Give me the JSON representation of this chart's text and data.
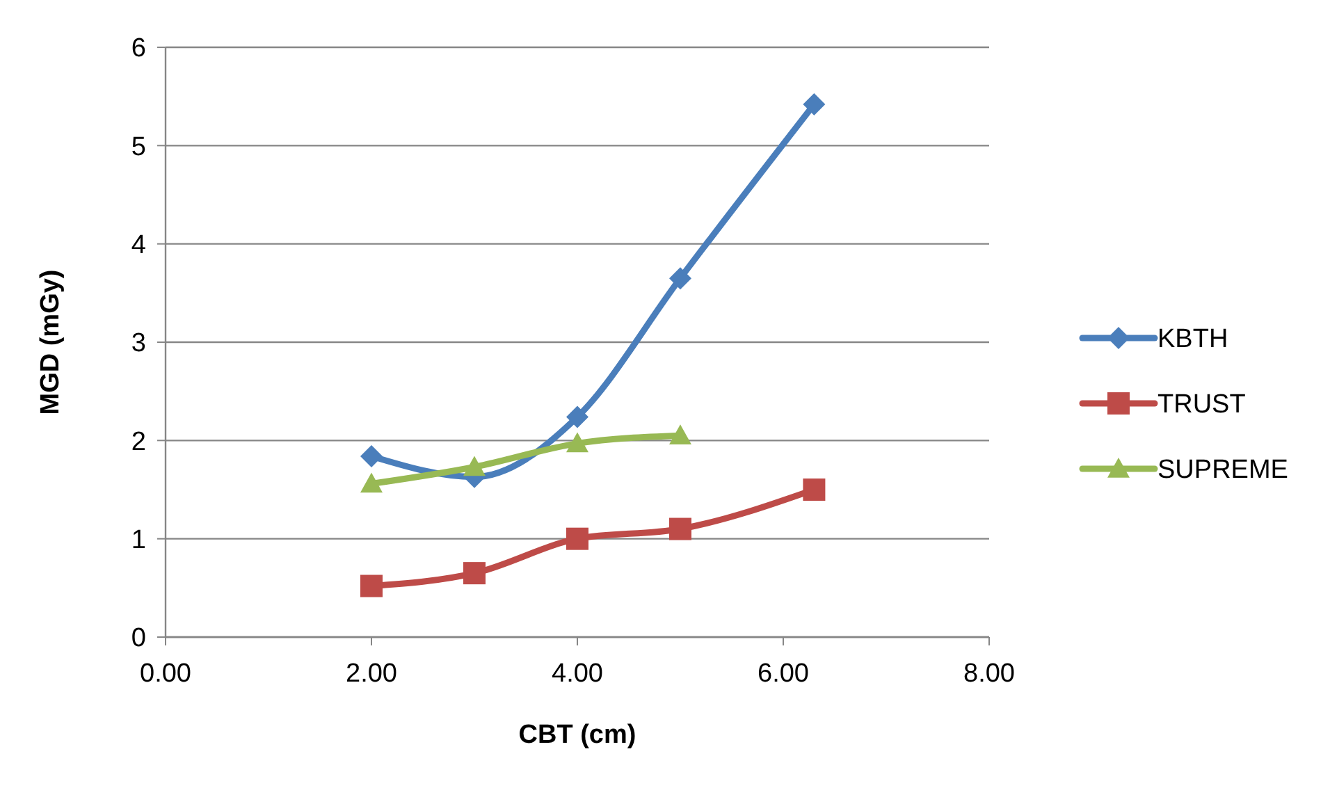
{
  "chart_data": {
    "type": "line",
    "xlabel": "CBT (cm)",
    "ylabel": "MGD (mGy)",
    "xlim": [
      0,
      8
    ],
    "xticks": [
      {
        "value": 0,
        "label": "0.00"
      },
      {
        "value": 2,
        "label": "2.00"
      },
      {
        "value": 4,
        "label": "4.00"
      },
      {
        "value": 6,
        "label": "6.00"
      },
      {
        "value": 8,
        "label": "8.00"
      }
    ],
    "ylim": [
      0,
      6
    ],
    "yticks": [
      0,
      1,
      2,
      3,
      4,
      5,
      6
    ],
    "grid": "y",
    "legend": "right",
    "series": [
      {
        "name": "KBTH",
        "color": "#4a7ebb",
        "marker": "diamond",
        "x": [
          2,
          3,
          4,
          5,
          6.3
        ],
        "values": [
          1.84,
          1.63,
          2.24,
          3.65,
          5.42
        ]
      },
      {
        "name": "TRUST",
        "color": "#be4b48",
        "marker": "square",
        "x": [
          2,
          3,
          4,
          5,
          6.3
        ],
        "values": [
          0.52,
          0.65,
          1.0,
          1.1,
          1.5
        ]
      },
      {
        "name": "SUPREME",
        "color": "#98b954",
        "marker": "triangle",
        "x": [
          2,
          3,
          4,
          5
        ],
        "values": [
          1.56,
          1.73,
          1.97,
          2.05
        ]
      }
    ]
  }
}
